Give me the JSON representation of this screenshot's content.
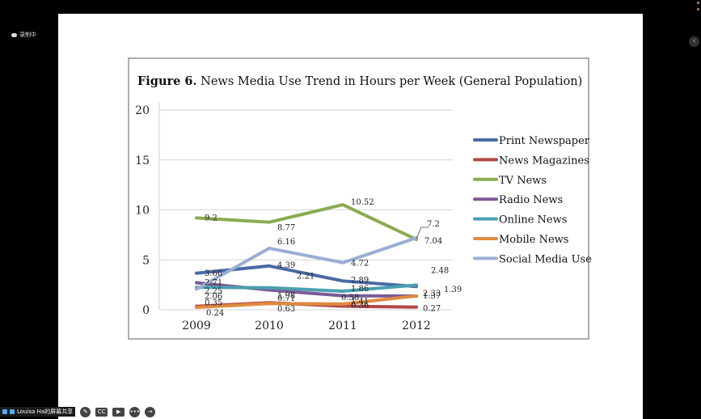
{
  "overlay": {
    "recording_label": "录制中",
    "presenter_label": "Louisa Ha的屏幕共享",
    "cc_label": "CC"
  },
  "chart_data": {
    "type": "line",
    "title_bold": "Figure 6.",
    "title_rest": " News Media Use Trend in Hours per Week (General Population)",
    "categories": [
      "2009",
      "2010",
      "2011",
      "2012"
    ],
    "ylim": [
      0,
      20
    ],
    "yticks": [
      "0",
      "5",
      "10",
      "15",
      "20"
    ],
    "series": [
      {
        "name": "Print Newspaper",
        "color": "#4a6aa5",
        "values": [
          3.66,
          4.39,
          2.89,
          2.33
        ],
        "labels": [
          "3.66",
          "4.39",
          "2.89",
          "2.33"
        ]
      },
      {
        "name": "News Magazines",
        "color": "#b04846",
        "values": [
          0.35,
          0.71,
          0.36,
          0.27
        ],
        "labels": [
          "0.35",
          "0.71",
          "0.36",
          "0.27"
        ]
      },
      {
        "name": "TV News",
        "color": "#8aaa50",
        "values": [
          9.2,
          8.77,
          10.52,
          7.04
        ],
        "labels": [
          "9.2",
          "8.77",
          "10.52",
          "7.04"
        ]
      },
      {
        "name": "Radio News",
        "color": "#7a5b96",
        "values": [
          2.71,
          1.98,
          1.41,
          1.37
        ],
        "labels": [
          "2.71",
          "1.98",
          "1.41",
          "1.37"
        ]
      },
      {
        "name": "Online News",
        "color": "#4a9fb0",
        "values": [
          2.25,
          2.21,
          1.86,
          2.48
        ],
        "labels": [
          "2.25",
          "2.21",
          "1.86",
          "2.48"
        ]
      },
      {
        "name": "Mobile News",
        "color": "#e08a40",
        "values": [
          0.24,
          0.63,
          0.58,
          1.39
        ],
        "labels": [
          "0.24",
          "0.63",
          "0.58",
          "1.39"
        ]
      },
      {
        "name": "Social Media Use",
        "color": "#9aaed4",
        "values": [
          2.06,
          6.16,
          4.72,
          7.2
        ],
        "labels": [
          "2.06",
          "6.16",
          "4.72",
          "7.2"
        ]
      }
    ]
  }
}
